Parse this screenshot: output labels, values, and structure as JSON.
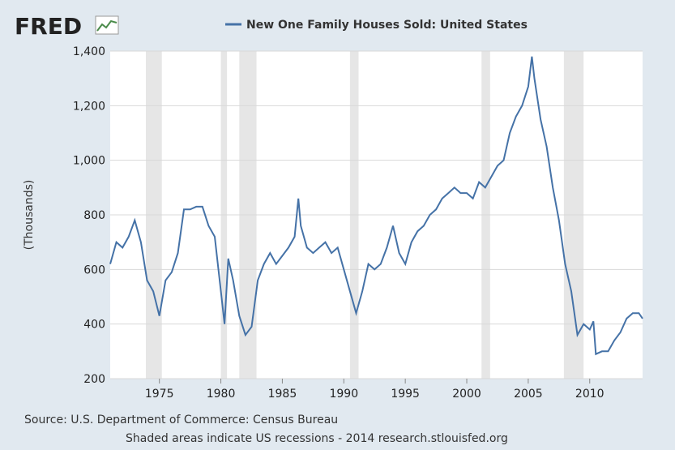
{
  "chart_data": {
    "type": "line",
    "logo": "FRED",
    "title": "New One Family Houses Sold: United States",
    "y_label": "(Thousands)",
    "source": "Source: U.S. Department of Commerce: Census Bureau",
    "note": "Shaded areas indicate US recessions - 2014 research.stlouisfed.org",
    "xlim": [
      1971,
      2014.3
    ],
    "ylim": [
      200,
      1400
    ],
    "xticks": [
      1975,
      1980,
      1985,
      1990,
      1995,
      2000,
      2005,
      2010
    ],
    "yticks": [
      200,
      400,
      600,
      800,
      {
        "value": 1000,
        "label": "1,000"
      },
      {
        "value": 1200,
        "label": "1,200"
      },
      {
        "value": 1400,
        "label": "1,400"
      }
    ],
    "grid": true,
    "recessions": [
      [
        1973.9,
        1975.2
      ],
      [
        1980.0,
        1980.5
      ],
      [
        1981.5,
        1982.9
      ],
      [
        1990.5,
        1991.2
      ],
      [
        2001.2,
        2001.9
      ],
      [
        2007.9,
        2009.5
      ]
    ],
    "recession_color": "#e6e6e6",
    "series": [
      {
        "name": "New One Family Houses Sold: United States",
        "color": "#4572a7",
        "x": [
          1971.0,
          1971.5,
          1972.0,
          1972.5,
          1973.0,
          1973.5,
          1974.0,
          1974.5,
          1975.0,
          1975.5,
          1976.0,
          1976.5,
          1977.0,
          1977.5,
          1978.0,
          1978.5,
          1979.0,
          1979.5,
          1980.0,
          1980.3,
          1980.6,
          1981.0,
          1981.5,
          1982.0,
          1982.5,
          1983.0,
          1983.5,
          1984.0,
          1984.5,
          1985.0,
          1985.5,
          1986.0,
          1986.3,
          1986.5,
          1987.0,
          1987.5,
          1988.0,
          1988.5,
          1989.0,
          1989.5,
          1990.0,
          1990.5,
          1991.0,
          1991.5,
          1992.0,
          1992.5,
          1993.0,
          1993.5,
          1994.0,
          1994.5,
          1995.0,
          1995.5,
          1996.0,
          1996.5,
          1997.0,
          1997.5,
          1998.0,
          1998.5,
          1999.0,
          1999.5,
          2000.0,
          2000.5,
          2001.0,
          2001.5,
          2002.0,
          2002.5,
          2003.0,
          2003.5,
          2004.0,
          2004.5,
          2005.0,
          2005.3,
          2005.5,
          2006.0,
          2006.5,
          2007.0,
          2007.5,
          2008.0,
          2008.5,
          2009.0,
          2009.5,
          2010.0,
          2010.3,
          2010.5,
          2011.0,
          2011.5,
          2012.0,
          2012.5,
          2013.0,
          2013.5,
          2014.0,
          2014.3
        ],
        "values": [
          620,
          700,
          680,
          720,
          780,
          700,
          560,
          520,
          430,
          560,
          590,
          660,
          820,
          820,
          830,
          830,
          760,
          720,
          520,
          400,
          640,
          560,
          430,
          360,
          390,
          560,
          620,
          660,
          620,
          650,
          680,
          720,
          860,
          760,
          680,
          660,
          680,
          700,
          660,
          680,
          600,
          520,
          440,
          520,
          620,
          600,
          620,
          680,
          760,
          660,
          620,
          700,
          740,
          760,
          800,
          820,
          860,
          880,
          900,
          880,
          880,
          860,
          920,
          900,
          940,
          980,
          1000,
          1100,
          1160,
          1200,
          1270,
          1380,
          1300,
          1150,
          1050,
          900,
          780,
          620,
          520,
          360,
          400,
          380,
          410,
          290,
          300,
          300,
          340,
          370,
          420,
          440,
          440,
          420
        ]
      }
    ]
  }
}
